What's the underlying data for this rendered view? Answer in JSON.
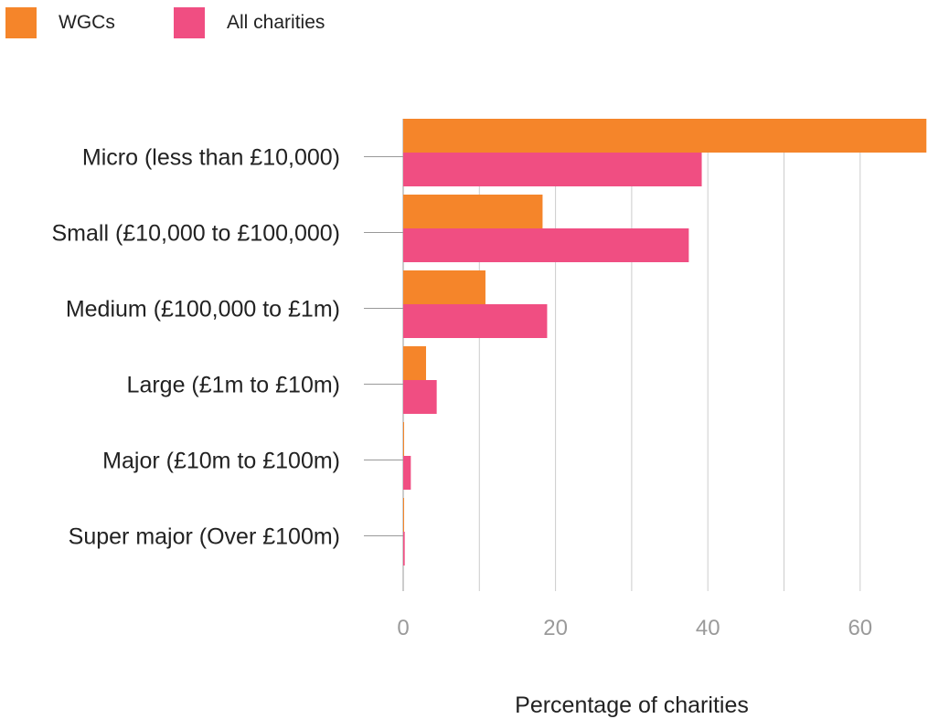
{
  "legend": [
    {
      "label": "WGCs",
      "color": "#f5852a"
    },
    {
      "label": "All charities",
      "color": "#f04e82"
    }
  ],
  "chart_data": {
    "type": "bar",
    "orientation": "horizontal",
    "categories": [
      "Micro (less than £10,000)",
      "Small (£10,000 to £100,000)",
      "Medium (£100,000 to £1m)",
      "Large (£1m to £10m)",
      "Major (£10m to £100m)",
      "Super major (Over £100m)"
    ],
    "series": [
      {
        "name": "WGCs",
        "color": "#f5852a",
        "values": [
          68.7,
          18.3,
          10.8,
          3.0,
          0.1,
          0.1
        ]
      },
      {
        "name": "All charities",
        "color": "#f04e82",
        "values": [
          39.2,
          37.5,
          18.9,
          4.4,
          1.0,
          0.2
        ]
      }
    ],
    "xlabel": "Percentage of charities",
    "xticks": [
      0,
      20,
      40,
      60
    ],
    "xlim": [
      0,
      68.7
    ],
    "grid": true,
    "legend_position": "top-left"
  }
}
